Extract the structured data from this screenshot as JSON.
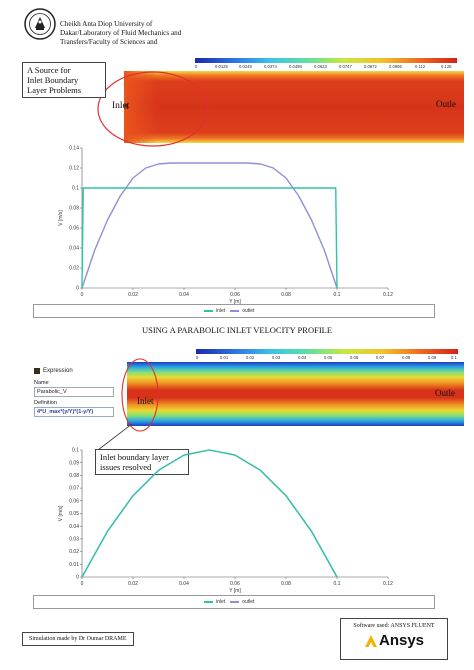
{
  "header": {
    "logo_icon": "university-seal-icon",
    "lines": [
      "Cheikh Anta Diop University of",
      "Dakar/Laboratory of Fluid Mechanics and",
      "Transfers/Faculty of Sciences and"
    ]
  },
  "top_section": {
    "colorbar_ticks": [
      "0",
      "0.0125",
      "0.0249",
      "0.0374",
      "0.0498",
      "0.0623",
      "0.0747",
      "0.0872",
      "0.0996",
      "0.112",
      "0.125"
    ],
    "inlet_label": "Inlet",
    "outlet_label": "Outle",
    "callout_lines": [
      "A Source for",
      "Inlet Boundary",
      "Layer Problems"
    ]
  },
  "chart1": {
    "ylabel": "V [m/s]",
    "xlabel": "Y [m]",
    "legend_inlet": "inlet",
    "legend_outlet": "outlet"
  },
  "section_title": "USING A PARABOLIC INLET VELOCITY PROFILE",
  "bottom_section": {
    "colorbar_ticks": [
      "0",
      "0.01",
      "0.02",
      "0.03",
      "0.04",
      "0.05",
      "0.06",
      "0.07",
      "0.08",
      "0.09",
      "0.1"
    ],
    "inlet_label": "Inlet",
    "outlet_label": "Outle",
    "callout_lines": [
      "Inlet boundary layer",
      "issues resolved"
    ]
  },
  "expression_panel": {
    "title": "Expression",
    "name_label": "Name",
    "name_value": "Parabolic_V",
    "definition_label": "Definition",
    "definition_value": "4*U_max*(y/Y)*(1-y/Y)"
  },
  "chart2": {
    "ylabel": "V [m/s]",
    "xlabel": "Y [m]",
    "legend_inlet": "inlet",
    "legend_outlet": "outlet"
  },
  "footer": {
    "credit": "Simulation made by Dr Oumar DRAME",
    "software": "Software used: ANSYS FLUENT",
    "brand": "Ansys"
  },
  "colors": {
    "inlet_series": "#2ec4a8",
    "outlet_series": "#8f8fd9",
    "callout_ellipse": "#e0302c",
    "contour_red": "#d83a1a"
  },
  "chart_data": [
    {
      "type": "line",
      "xlabel": "Y [m]",
      "ylabel": "V [m/s]",
      "xlim": [
        0,
        0.12
      ],
      "ylim": [
        0,
        0.14
      ],
      "x_ticks": [
        "0",
        "0.02",
        "0.04",
        "0.06",
        "0.08",
        "0.1",
        "0.12"
      ],
      "y_ticks": [
        "0",
        "0.02",
        "0.04",
        "0.06",
        "0.08",
        "0.1",
        "0.12",
        "0.14"
      ],
      "series": [
        {
          "name": "inlet",
          "x": [
            0,
            0.0005,
            0.0995,
            0.1
          ],
          "y": [
            0,
            0.1,
            0.1,
            0
          ]
        },
        {
          "name": "outlet",
          "x": [
            0,
            0.005,
            0.01,
            0.015,
            0.02,
            0.025,
            0.03,
            0.035,
            0.04,
            0.05,
            0.06,
            0.065,
            0.07,
            0.075,
            0.08,
            0.085,
            0.09,
            0.095,
            0.1
          ],
          "y": [
            0,
            0.038,
            0.068,
            0.092,
            0.11,
            0.12,
            0.124,
            0.125,
            0.125,
            0.125,
            0.125,
            0.125,
            0.124,
            0.12,
            0.11,
            0.092,
            0.068,
            0.038,
            0
          ]
        }
      ],
      "legend": "bottom",
      "grid": false
    },
    {
      "type": "line",
      "xlabel": "Y [m]",
      "ylabel": "V [m/s]",
      "xlim": [
        0,
        0.12
      ],
      "ylim": [
        0,
        0.1
      ],
      "x_ticks": [
        "0",
        "0.02",
        "0.04",
        "0.06",
        "0.08",
        "0.1",
        "0.12"
      ],
      "y_ticks": [
        "0",
        "0.01",
        "0.02",
        "0.03",
        "0.04",
        "0.05",
        "0.06",
        "0.07",
        "0.08",
        "0.09",
        "0.1"
      ],
      "series": [
        {
          "name": "inlet",
          "x": [
            0,
            0.01,
            0.02,
            0.03,
            0.04,
            0.05,
            0.06,
            0.07,
            0.08,
            0.09,
            0.1
          ],
          "y": [
            0,
            0.036,
            0.064,
            0.084,
            0.096,
            0.1,
            0.096,
            0.084,
            0.064,
            0.036,
            0
          ]
        },
        {
          "name": "outlet",
          "x": [
            0,
            0.01,
            0.02,
            0.03,
            0.04,
            0.05,
            0.06,
            0.07,
            0.08,
            0.09,
            0.1
          ],
          "y": [
            0,
            0.036,
            0.064,
            0.084,
            0.096,
            0.1,
            0.096,
            0.084,
            0.064,
            0.036,
            0
          ]
        }
      ],
      "legend": "bottom",
      "grid": false
    }
  ]
}
